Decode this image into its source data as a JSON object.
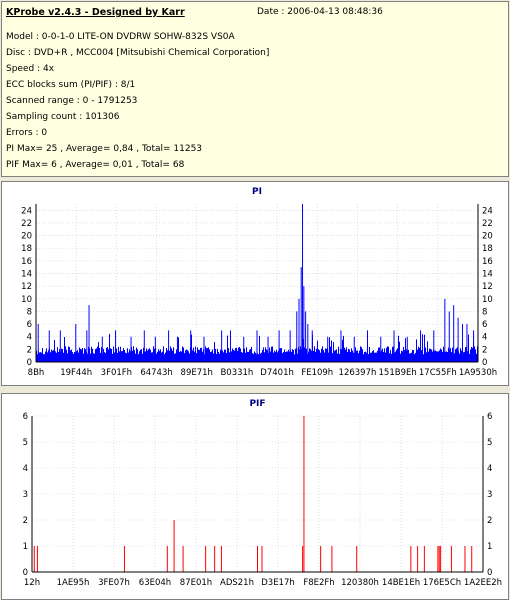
{
  "header": {
    "app_title": "KProbe v2.4.3 - Designed by Karr",
    "date": "Date : 2006-04-13 08:48:36"
  },
  "info_lines": [
    "Model : 0-0-1-0 LITE-ON DVDRW SOHW-832S  VS0A",
    "Disc : DVD+R , MCC004 [Mitsubishi Chemical Corporation]",
    "Speed : 4x",
    "ECC blocks sum (PI/PIF) : 8/1",
    "Scanned range : 0 - 1791253",
    "Sampling count : 101306",
    "Errors : 0",
    "PI Max= 25 , Average= 0,84 , Total= 11253",
    "PIF Max= 6 , Average= 0,01 , Total= 68"
  ],
  "colors": {
    "pi": "#0000ff",
    "pif": "#ff0000",
    "info_bg": "#ffffe1",
    "grid": "#c8c8dc"
  },
  "chart_data": [
    {
      "type": "bar",
      "title": "PI",
      "ylim": [
        0,
        25
      ],
      "yticks": [
        0,
        2,
        4,
        6,
        8,
        10,
        12,
        14,
        16,
        18,
        20,
        22,
        24
      ],
      "xticks": [
        "8Bh",
        "19F44h",
        "3F01Fh",
        "64743h",
        "89E71h",
        "B0331h",
        "D7401h",
        "FE109h",
        "126397h",
        "151B9Eh",
        "17C55Fh",
        "1A9530h"
      ],
      "grid": true,
      "baseline": 2,
      "spikes": [
        {
          "pos": 0.005,
          "v": 6
        },
        {
          "pos": 0.03,
          "v": 5
        },
        {
          "pos": 0.055,
          "v": 5
        },
        {
          "pos": 0.09,
          "v": 6
        },
        {
          "pos": 0.115,
          "v": 5
        },
        {
          "pos": 0.12,
          "v": 9
        },
        {
          "pos": 0.15,
          "v": 4
        },
        {
          "pos": 0.18,
          "v": 5
        },
        {
          "pos": 0.215,
          "v": 4
        },
        {
          "pos": 0.245,
          "v": 5
        },
        {
          "pos": 0.27,
          "v": 4
        },
        {
          "pos": 0.3,
          "v": 5
        },
        {
          "pos": 0.32,
          "v": 4
        },
        {
          "pos": 0.35,
          "v": 5
        },
        {
          "pos": 0.38,
          "v": 4
        },
        {
          "pos": 0.42,
          "v": 5
        },
        {
          "pos": 0.44,
          "v": 5
        },
        {
          "pos": 0.47,
          "v": 4
        },
        {
          "pos": 0.5,
          "v": 5
        },
        {
          "pos": 0.525,
          "v": 4
        },
        {
          "pos": 0.55,
          "v": 5
        },
        {
          "pos": 0.575,
          "v": 5
        },
        {
          "pos": 0.59,
          "v": 8
        },
        {
          "pos": 0.595,
          "v": 10
        },
        {
          "pos": 0.6,
          "v": 15
        },
        {
          "pos": 0.603,
          "v": 25
        },
        {
          "pos": 0.606,
          "v": 12
        },
        {
          "pos": 0.61,
          "v": 8
        },
        {
          "pos": 0.615,
          "v": 6
        },
        {
          "pos": 0.625,
          "v": 5
        },
        {
          "pos": 0.66,
          "v": 4
        },
        {
          "pos": 0.69,
          "v": 5
        },
        {
          "pos": 0.72,
          "v": 4
        },
        {
          "pos": 0.75,
          "v": 5
        },
        {
          "pos": 0.78,
          "v": 4
        },
        {
          "pos": 0.81,
          "v": 5
        },
        {
          "pos": 0.84,
          "v": 4
        },
        {
          "pos": 0.87,
          "v": 5
        },
        {
          "pos": 0.9,
          "v": 5
        },
        {
          "pos": 0.925,
          "v": 10
        },
        {
          "pos": 0.935,
          "v": 8
        },
        {
          "pos": 0.945,
          "v": 9
        },
        {
          "pos": 0.955,
          "v": 7
        },
        {
          "pos": 0.965,
          "v": 6
        },
        {
          "pos": 0.975,
          "v": 6
        },
        {
          "pos": 0.99,
          "v": 5
        }
      ]
    },
    {
      "type": "bar",
      "title": "PIF",
      "ylim": [
        0,
        6
      ],
      "yticks": [
        0,
        1,
        2,
        3,
        4,
        5,
        6
      ],
      "xticks": [
        "12h",
        "1AE95h",
        "3FE07h",
        "63E04h",
        "87E01h",
        "ADS21h",
        "D3E17h",
        "F8E2Fh",
        "120380h",
        "14BE1Eh",
        "176E5Ch",
        "1A2EE2h"
      ],
      "grid": true,
      "spikes": [
        {
          "pos": 0.005,
          "v": 1
        },
        {
          "pos": 0.012,
          "v": 1
        },
        {
          "pos": 0.205,
          "v": 1
        },
        {
          "pos": 0.3,
          "v": 1
        },
        {
          "pos": 0.315,
          "v": 2
        },
        {
          "pos": 0.335,
          "v": 1
        },
        {
          "pos": 0.385,
          "v": 1
        },
        {
          "pos": 0.405,
          "v": 1
        },
        {
          "pos": 0.42,
          "v": 1
        },
        {
          "pos": 0.5,
          "v": 1
        },
        {
          "pos": 0.51,
          "v": 1
        },
        {
          "pos": 0.6,
          "v": 1
        },
        {
          "pos": 0.603,
          "v": 6
        },
        {
          "pos": 0.64,
          "v": 1
        },
        {
          "pos": 0.665,
          "v": 1
        },
        {
          "pos": 0.72,
          "v": 1
        },
        {
          "pos": 0.84,
          "v": 1
        },
        {
          "pos": 0.855,
          "v": 1
        },
        {
          "pos": 0.87,
          "v": 1
        },
        {
          "pos": 0.9,
          "v": 1
        },
        {
          "pos": 0.903,
          "v": 1
        },
        {
          "pos": 0.906,
          "v": 1
        },
        {
          "pos": 0.93,
          "v": 1
        },
        {
          "pos": 0.96,
          "v": 1
        },
        {
          "pos": 0.975,
          "v": 1
        }
      ]
    }
  ]
}
